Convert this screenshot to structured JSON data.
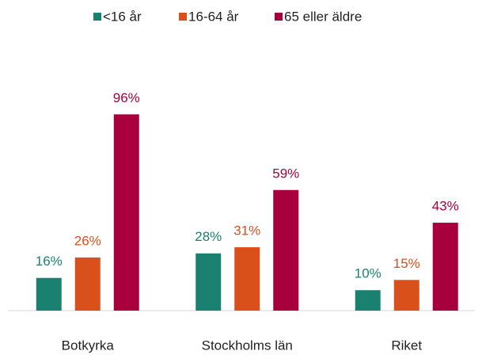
{
  "chart_data": {
    "type": "bar",
    "categories": [
      "Botkyrka",
      "Stockholms län",
      "Riket"
    ],
    "series": [
      {
        "name": "<16 år",
        "color": "#1a8070",
        "values": [
          16,
          28,
          10
        ],
        "value_labels": [
          "16%",
          "28%",
          "10%"
        ]
      },
      {
        "name": "16-64 år",
        "color": "#d9501a",
        "values": [
          26,
          31,
          15
        ],
        "value_labels": [
          "26%",
          "31%",
          "15%"
        ]
      },
      {
        "name": "65 eller äldre",
        "color": "#a8003d",
        "values": [
          96,
          59,
          43
        ],
        "value_labels": [
          "96%",
          "59%",
          "43%"
        ]
      }
    ],
    "ylim": [
      0,
      100
    ]
  }
}
